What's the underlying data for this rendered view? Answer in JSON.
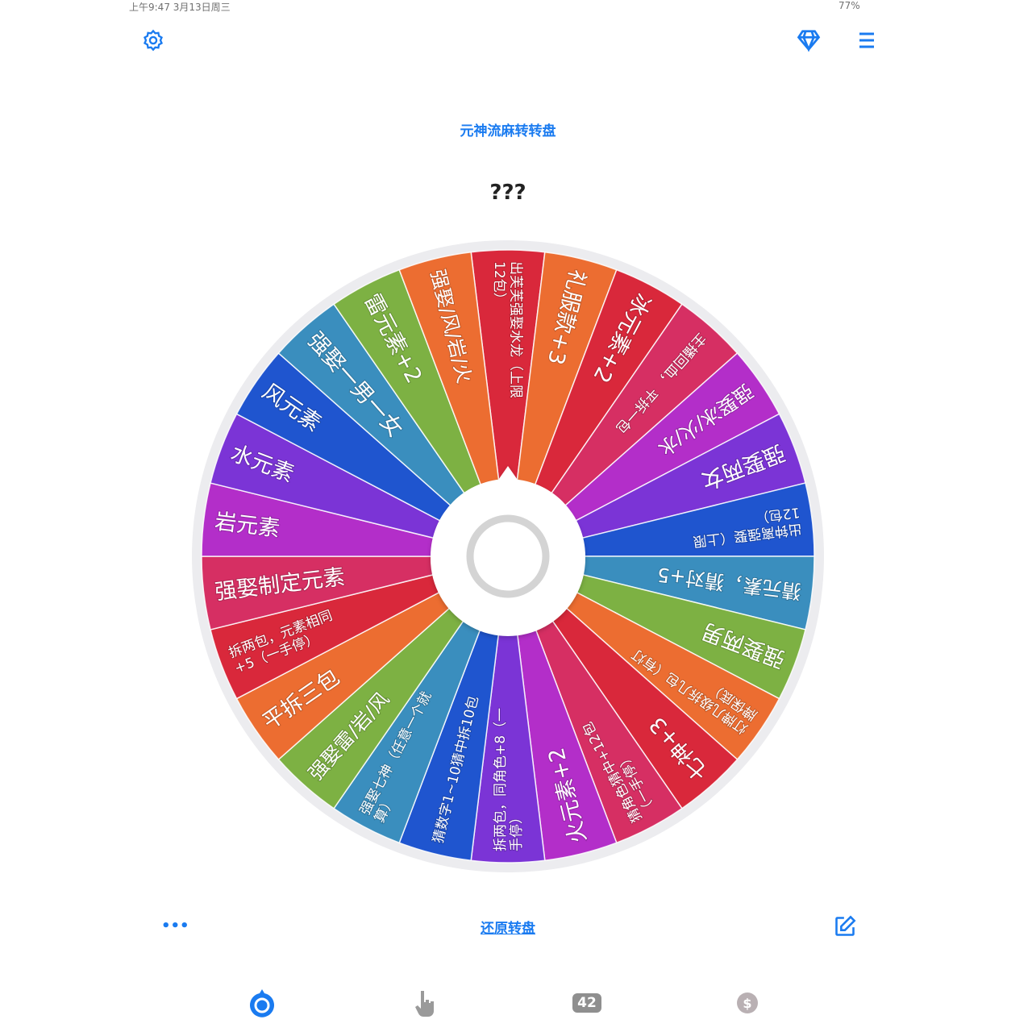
{
  "status_bar": {
    "time_date": "上午9:47 3月13日周三",
    "battery": "77%"
  },
  "header": {
    "settings_icon": "gear-icon",
    "premium_icon": "diamond-icon",
    "menu_icon": "list-icon"
  },
  "title": "元神流麻转转盘",
  "result": "???",
  "wheel": {
    "segments": [
      {
        "lines": [
          "出芙芙强娶水龙（上限",
          "12包）"
        ],
        "color": "#d9283b"
      },
      {
        "lines": [
          "礼服款+3"
        ],
        "color": "#ec6d31"
      },
      {
        "lines": [
          "冰元素+2"
        ],
        "color": "#d9283b"
      },
      {
        "lines": [
          "主播回血，  平拆一包"
        ],
        "color": "#d62f63"
      },
      {
        "lines": [
          "强娶冰/火/水"
        ],
        "color": "#b32ec9"
      },
      {
        "lines": [
          "强娶两女"
        ],
        "color": "#7b34d6"
      },
      {
        "lines": [
          "出钟离强娶（上限",
          "12包）"
        ],
        "color": "#1f55cf"
      },
      {
        "lines": [
          "猜元素，猜对+5"
        ],
        "color": "#3a8ebe"
      },
      {
        "lines": [
          "强娶两男"
        ],
        "color": "#7db143"
      },
      {
        "lines": [
          "灯牌几级拆几包（有灯",
          "牌保底）"
        ],
        "color": "#ec6d31"
      },
      {
        "lines": [
          "七神+3"
        ],
        "color": "#d9283b"
      },
      {
        "lines": [
          "猜角色猜中+12包",
          "（一手停）"
        ],
        "color": "#d62f63"
      },
      {
        "lines": [
          "火元素+2"
        ],
        "color": "#b32ec9"
      },
      {
        "lines": [
          "拆两包，同角色+8（一",
          "手停）"
        ],
        "color": "#7b34d6"
      },
      {
        "lines": [
          "猜数字1~10猜中拆10包"
        ],
        "color": "#1f55cf"
      },
      {
        "lines": [
          "强娶七神（任意一个就",
          "算）"
        ],
        "color": "#3a8ebe"
      },
      {
        "lines": [
          "强娶雷/岩/风"
        ],
        "color": "#7db143"
      },
      {
        "lines": [
          "平拆三包"
        ],
        "color": "#ec6d31"
      },
      {
        "lines": [
          "拆两包，元素相同",
          "+5（一手停）"
        ],
        "color": "#d9283b"
      },
      {
        "lines": [
          "强娶制定元素"
        ],
        "color": "#d62f63"
      },
      {
        "lines": [
          "岩元素"
        ],
        "color": "#b32ec9"
      },
      {
        "lines": [
          "水元素"
        ],
        "color": "#7b34d6"
      },
      {
        "lines": [
          "风元素"
        ],
        "color": "#1f55cf"
      },
      {
        "lines": [
          "强娶一男一女"
        ],
        "color": "#3a8ebe"
      },
      {
        "lines": [
          "雷元素+2"
        ],
        "color": "#7db143"
      },
      {
        "lines": [
          "强娶/风/岩/火"
        ],
        "color": "#ec6d31"
      }
    ]
  },
  "toolbar": {
    "more_label": "•••",
    "reset_label": "还原转盘",
    "edit_icon": "edit-icon"
  },
  "tabbar": {
    "items": [
      {
        "icon": "wheel-icon",
        "active": true
      },
      {
        "icon": "tap-finger-icon",
        "active": false
      },
      {
        "icon": "number-icon",
        "label": "42",
        "active": false
      },
      {
        "icon": "coin-icon",
        "active": false
      }
    ]
  },
  "accent_color": "#1a7bf0"
}
